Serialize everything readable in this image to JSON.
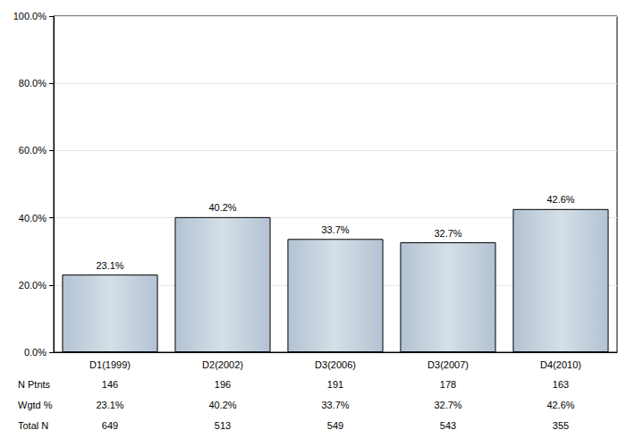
{
  "chart_data": {
    "type": "bar",
    "categories": [
      "D1(1999)",
      "D2(2002)",
      "D3(2006)",
      "D3(2007)",
      "D4(2010)"
    ],
    "values": [
      23.1,
      40.2,
      33.7,
      32.7,
      42.6
    ],
    "value_labels": [
      "23.1%",
      "40.2%",
      "33.7%",
      "32.7%",
      "42.6%"
    ],
    "color": "#b3c2d4",
    "ylim": [
      0,
      100
    ],
    "yticks": [
      {
        "value": 0,
        "label": "0.0%"
      },
      {
        "value": 20,
        "label": "20.0%"
      },
      {
        "value": 40,
        "label": "40.0%"
      },
      {
        "value": 60,
        "label": "60.0%"
      },
      {
        "value": 80,
        "label": "80.0%"
      },
      {
        "value": 100,
        "label": "100.0%"
      }
    ],
    "grid": true,
    "data_labels": true,
    "table": {
      "rows": [
        {
          "label": "N Ptnts",
          "cells": [
            "146",
            "196",
            "191",
            "178",
            "163"
          ]
        },
        {
          "label": "Wgtd %",
          "cells": [
            "23.1%",
            "40.2%",
            "33.7%",
            "32.7%",
            "42.6%"
          ]
        },
        {
          "label": "Total N",
          "cells": [
            "649",
            "513",
            "549",
            "543",
            "355"
          ]
        }
      ]
    }
  }
}
